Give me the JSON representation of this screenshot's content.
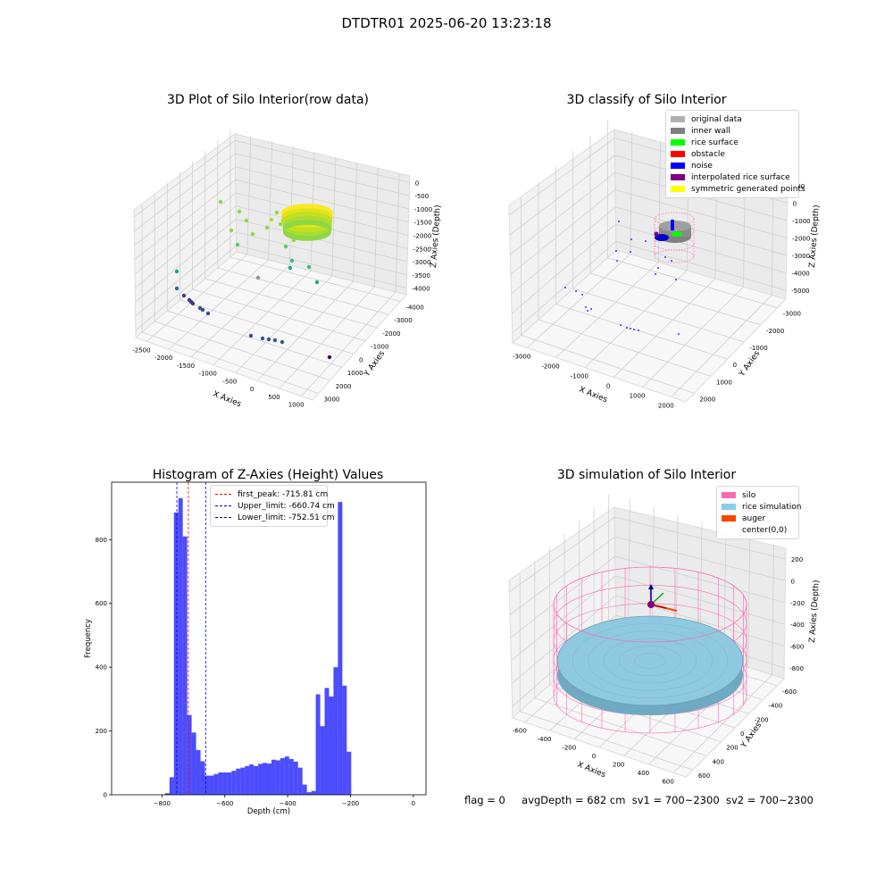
{
  "suptitle": "DTDTR01 2025-06-20 13:23:18",
  "panel1": {
    "title": "3D Plot of Silo Interior(row data)",
    "xlabel": "X Axies",
    "ylabel": "Y Axies",
    "zlabel": "Z Axies (Depth)",
    "x_ticks": [
      "-2500",
      "-2000",
      "-1500",
      "-1000",
      "-500",
      "0",
      "500",
      "1000"
    ],
    "y_ticks": [
      "-4000",
      "-3000",
      "-2000",
      "-1000",
      "0",
      "1000",
      "2000",
      "3000"
    ],
    "z_ticks": [
      "0",
      "-500",
      "-1000",
      "-1500",
      "-2000",
      "-2500",
      "-3000",
      "-3500",
      "-4000"
    ]
  },
  "panel2": {
    "title": "3D classify of Silo Interior",
    "xlabel": "X Axies",
    "ylabel": "Y Axies",
    "zlabel": "Z Axies (Depth)",
    "x_ticks": [
      "-3000",
      "-2000",
      "-1000",
      "0",
      "1000",
      "2000"
    ],
    "y_ticks": [
      "-3000",
      "-2000",
      "-1000",
      "0",
      "1000",
      "2000"
    ],
    "z_ticks": [
      "000",
      "0",
      "-1000",
      "-2000",
      "-3000",
      "-4000",
      "-5000"
    ],
    "legend": [
      {
        "label": "original data",
        "color": "#b0b0b0"
      },
      {
        "label": "inner wall",
        "color": "#808080"
      },
      {
        "label": "rice surface",
        "color": "#00ff00"
      },
      {
        "label": "obstacle",
        "color": "#ff0000"
      },
      {
        "label": "noise",
        "color": "#0000ff"
      },
      {
        "label": "interpolated rice surface",
        "color": "#800080"
      },
      {
        "label": "symmetric generated points",
        "color": "#ffff00"
      }
    ]
  },
  "chart_data": [
    {
      "type": "bar",
      "title": "Histogram of Z-Axies (Height) Values",
      "xlabel": "Depth (cm)",
      "ylabel": "Frequency",
      "xlim": [
        -960,
        40
      ],
      "ylim": [
        0,
        980
      ],
      "x_ticks": [
        -800,
        -600,
        -400,
        -200,
        0
      ],
      "y_ticks": [
        0,
        200,
        400,
        600,
        800
      ],
      "bin_start": -790,
      "bin_width": 14.1,
      "values": [
        5,
        55,
        885,
        930,
        810,
        250,
        195,
        140,
        105,
        60,
        60,
        65,
        70,
        70,
        70,
        75,
        82,
        85,
        90,
        95,
        90,
        97,
        100,
        98,
        110,
        108,
        115,
        120,
        112,
        104,
        85,
        32,
        8,
        12,
        315,
        215,
        335,
        308,
        400,
        918,
        342,
        135
      ],
      "color": "#0000ff",
      "lines": [
        {
          "label": "first_peak: -715.81 cm",
          "x": -715.81,
          "color": "#ff0000"
        },
        {
          "label": "Upper_limit: -660.74 cm",
          "x": -660.74,
          "color": "#0000cc"
        },
        {
          "label": "Lower_limit: -752.51 cm",
          "x": -752.51,
          "color": "#0000cc"
        }
      ]
    }
  ],
  "panel4": {
    "title": "3D simulation of Silo Interior",
    "xlabel": "X Axies",
    "ylabel": "Y Axies",
    "zlabel": "Z Axies (Depth)",
    "x_ticks": [
      "-600",
      "-400",
      "-200",
      "0",
      "200",
      "400",
      "600"
    ],
    "y_ticks": [
      "-600",
      "-400",
      "-200",
      "0",
      "200",
      "400",
      "600"
    ],
    "z_ticks": [
      "200",
      "0",
      "-200",
      "-400",
      "-600",
      "-800"
    ],
    "legend": [
      {
        "label": "silo",
        "color": "#ff69b4"
      },
      {
        "label": "rice simulation",
        "color": "#87ceeb"
      },
      {
        "label": "auger",
        "color": "#ff4500"
      },
      {
        "label": "center(0,0)",
        "color": "#ffffff"
      }
    ]
  },
  "status": {
    "flag": "flag = 0",
    "avg_depth": "avgDepth = 682 cm",
    "sv1": "sv1 = 700~2300",
    "sv2": "sv2 = 700~2300"
  }
}
